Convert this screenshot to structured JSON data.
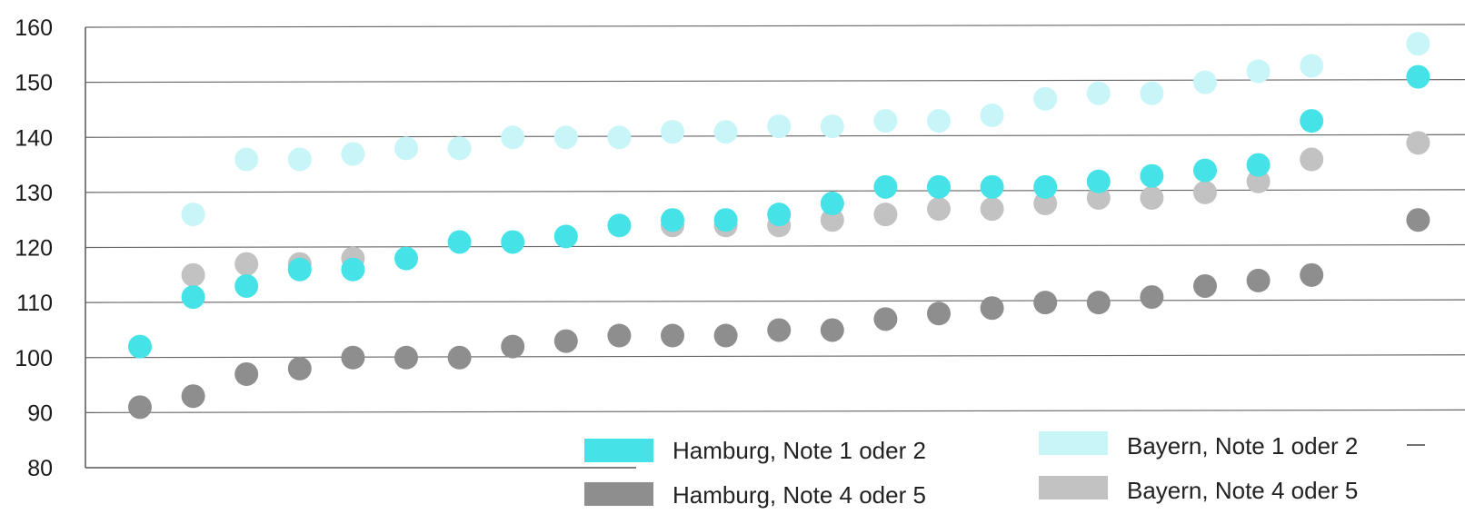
{
  "chart_data": {
    "type": "scatter",
    "title": "",
    "xlabel": "",
    "ylabel": "",
    "ylim": [
      80,
      160
    ],
    "yticks": [
      80,
      90,
      100,
      110,
      120,
      130,
      140,
      150,
      160
    ],
    "grid": true,
    "legend_position": "bottom-right",
    "x": [
      1,
      2,
      3,
      4,
      5,
      6,
      7,
      8,
      9,
      10,
      11,
      12,
      13,
      14,
      15,
      16,
      17,
      18,
      19,
      20,
      21,
      22,
      23,
      24,
      25
    ],
    "series": [
      {
        "name": "Bayern, Note 1 oder 2",
        "color": "#c8f6f8",
        "values": [
          null,
          126,
          136,
          136,
          137,
          138,
          138,
          140,
          140,
          140,
          141,
          141,
          142,
          142,
          143,
          143,
          144,
          147,
          148,
          148,
          150,
          152,
          153,
          null,
          157
        ]
      },
      {
        "name": "Bayern, Note 4 oder 5",
        "color": "#c2c2c2",
        "values": [
          null,
          115,
          117,
          117,
          118,
          null,
          null,
          null,
          null,
          null,
          124,
          124,
          124,
          125,
          126,
          127,
          127,
          128,
          129,
          129,
          130,
          132,
          136,
          null,
          139
        ]
      },
      {
        "name": "Hamburg, Note 1 oder 2",
        "color": "#45e3e7",
        "values": [
          102,
          111,
          113,
          116,
          116,
          118,
          121,
          121,
          122,
          124,
          125,
          125,
          126,
          128,
          131,
          131,
          131,
          131,
          132,
          133,
          134,
          135,
          143,
          null,
          151
        ]
      },
      {
        "name": "Hamburg, Note 4 oder 5",
        "color": "#8e8e8e",
        "values": [
          91,
          93,
          97,
          98,
          100,
          100,
          100,
          102,
          103,
          104,
          104,
          104,
          105,
          105,
          107,
          108,
          109,
          110,
          110,
          111,
          113,
          114,
          115,
          null,
          125
        ]
      }
    ],
    "legend": [
      {
        "label": "Hamburg, Note 1 oder 2",
        "color": "#45e3e7"
      },
      {
        "label": "Bayern, Note 1 oder 2",
        "color": "#c8f6f8"
      },
      {
        "label": "Hamburg, Note 4 oder 5",
        "color": "#8e8e8e"
      },
      {
        "label": "Bayern, Note 4 oder 5",
        "color": "#c2c2c2"
      }
    ]
  }
}
